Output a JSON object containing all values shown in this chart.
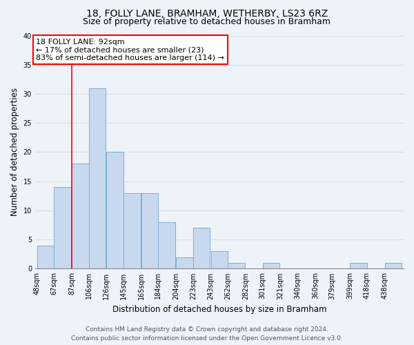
{
  "title_line1": "18, FOLLY LANE, BRAMHAM, WETHERBY, LS23 6RZ",
  "title_line2": "Size of property relative to detached houses in Bramham",
  "xlabel": "Distribution of detached houses by size in Bramham",
  "ylabel": "Number of detached properties",
  "bar_labels": [
    "48sqm",
    "67sqm",
    "87sqm",
    "106sqm",
    "126sqm",
    "145sqm",
    "165sqm",
    "184sqm",
    "204sqm",
    "223sqm",
    "243sqm",
    "262sqm",
    "282sqm",
    "301sqm",
    "321sqm",
    "340sqm",
    "360sqm",
    "379sqm",
    "399sqm",
    "418sqm",
    "438sqm"
  ],
  "bar_values": [
    4,
    14,
    18,
    31,
    20,
    13,
    13,
    8,
    2,
    7,
    3,
    1,
    0,
    1,
    0,
    0,
    0,
    0,
    1,
    0,
    1
  ],
  "bar_color": "#c8d9ef",
  "bar_edge_color": "#7aadd4",
  "bin_starts": [
    48,
    67,
    87,
    106,
    126,
    145,
    165,
    184,
    204,
    223,
    243,
    262,
    282,
    301,
    321,
    340,
    360,
    379,
    399,
    418,
    438
  ],
  "bin_width": 19,
  "red_line_x": 87,
  "annotation_text_line1": "18 FOLLY LANE: 92sqm",
  "annotation_text_line2": "← 17% of detached houses are smaller (23)",
  "annotation_text_line3": "83% of semi-detached houses are larger (114) →",
  "ylim": [
    0,
    40
  ],
  "yticks": [
    0,
    5,
    10,
    15,
    20,
    25,
    30,
    35,
    40
  ],
  "footer_line1": "Contains HM Land Registry data © Crown copyright and database right 2024.",
  "footer_line2": "Contains public sector information licensed under the Open Government Licence v3.0.",
  "background_color": "#eef2f9",
  "grid_color": "#d8dde8",
  "title_fontsize": 10,
  "subtitle_fontsize": 9,
  "axis_label_fontsize": 8.5,
  "tick_fontsize": 7,
  "annot_fontsize": 8,
  "footer_fontsize": 6.5
}
